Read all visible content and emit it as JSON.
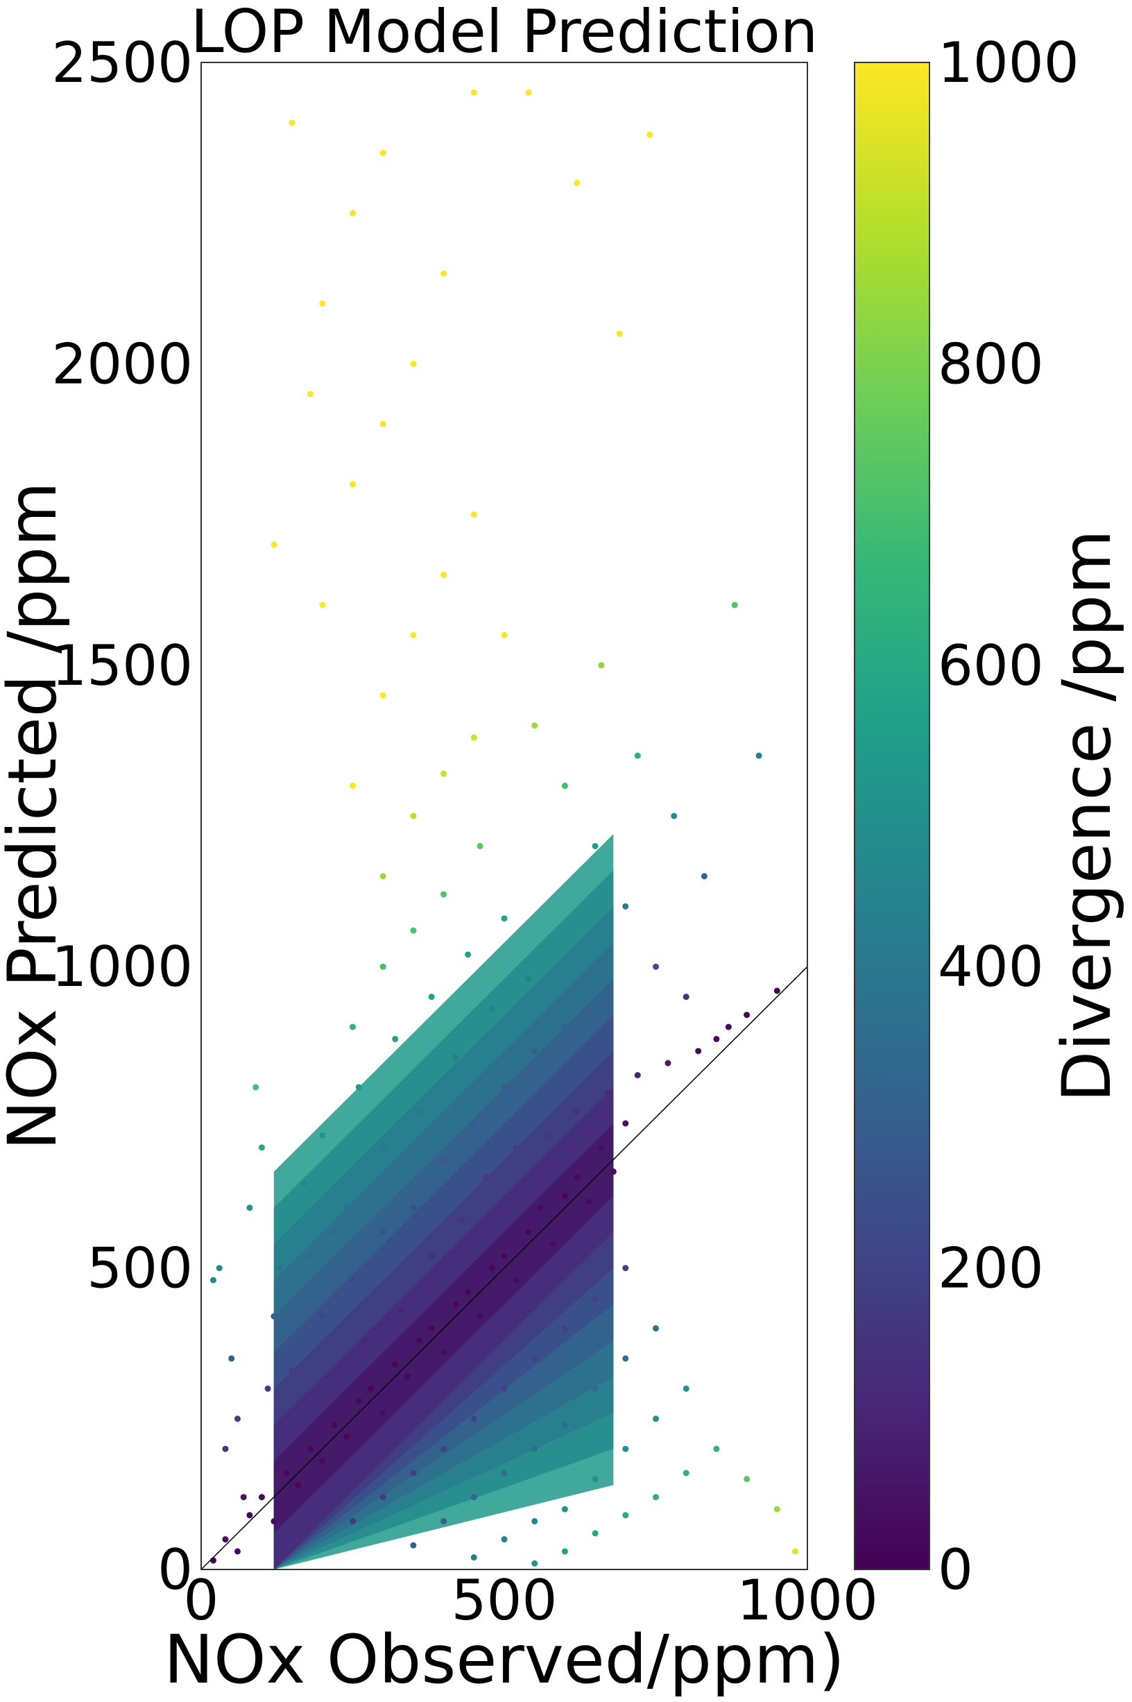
{
  "chart_data": {
    "type": "scatter",
    "title": "LOP Model Prediction",
    "xlabel": "NOx Observed/ppm)",
    "ylabel": "NOx Predicted /ppm",
    "xlim": [
      0,
      1000
    ],
    "ylim": [
      0,
      2500
    ],
    "x_ticks": [
      "0",
      "500",
      "1000"
    ],
    "y_ticks": [
      "0",
      "500",
      "1000",
      "1500",
      "2000",
      "2500"
    ],
    "reference_line": {
      "from": [
        0,
        0
      ],
      "to": [
        1000,
        1000
      ],
      "color": "#000000"
    },
    "grid": false,
    "colorbar": {
      "label": "Divergence /ppm",
      "range": [
        0,
        1000
      ],
      "ticks": [
        "0",
        "200",
        "400",
        "600",
        "800",
        "1000"
      ],
      "colormap": "viridis",
      "color_stops": [
        "#440154",
        "#482878",
        "#3e4989",
        "#31688e",
        "#26828e",
        "#1f9e89",
        "#35b779",
        "#6ece58",
        "#b5de2b",
        "#fde725"
      ]
    },
    "series": [
      {
        "color_by": "divergence = |predicted - observed|",
        "points": [
          [
            20,
            15
          ],
          [
            40,
            50
          ],
          [
            60,
            30
          ],
          [
            80,
            90
          ],
          [
            100,
            120
          ],
          [
            120,
            80
          ],
          [
            140,
            160
          ],
          [
            160,
            140
          ],
          [
            180,
            200
          ],
          [
            200,
            180
          ],
          [
            220,
            240
          ],
          [
            240,
            220
          ],
          [
            260,
            280
          ],
          [
            280,
            300
          ],
          [
            300,
            260
          ],
          [
            320,
            340
          ],
          [
            340,
            320
          ],
          [
            360,
            380
          ],
          [
            380,
            400
          ],
          [
            400,
            360
          ],
          [
            420,
            440
          ],
          [
            440,
            460
          ],
          [
            460,
            420
          ],
          [
            480,
            500
          ],
          [
            500,
            520
          ],
          [
            520,
            480
          ],
          [
            540,
            560
          ],
          [
            560,
            600
          ],
          [
            580,
            540
          ],
          [
            600,
            620
          ],
          [
            620,
            650
          ],
          [
            640,
            610
          ],
          [
            660,
            700
          ],
          [
            680,
            660
          ],
          [
            700,
            740
          ],
          [
            150,
            330
          ],
          [
            200,
            420
          ],
          [
            250,
            480
          ],
          [
            300,
            560
          ],
          [
            350,
            600
          ],
          [
            400,
            680
          ],
          [
            450,
            740
          ],
          [
            500,
            800
          ],
          [
            550,
            860
          ],
          [
            600,
            900
          ],
          [
            120,
            420
          ],
          [
            180,
            520
          ],
          [
            240,
            600
          ],
          [
            300,
            700
          ],
          [
            360,
            760
          ],
          [
            420,
            850
          ],
          [
            480,
            930
          ],
          [
            540,
            980
          ],
          [
            200,
            720
          ],
          [
            260,
            800
          ],
          [
            320,
            880
          ],
          [
            380,
            950
          ],
          [
            440,
            1020
          ],
          [
            500,
            1080
          ],
          [
            250,
            900
          ],
          [
            300,
            1000
          ],
          [
            350,
            1060
          ],
          [
            400,
            1120
          ],
          [
            460,
            1200
          ],
          [
            300,
            1150
          ],
          [
            350,
            1250
          ],
          [
            400,
            1320
          ],
          [
            450,
            1380
          ],
          [
            250,
            1300
          ],
          [
            300,
            1450
          ],
          [
            350,
            1550
          ],
          [
            400,
            1650
          ],
          [
            450,
            1750
          ],
          [
            200,
            1600
          ],
          [
            250,
            1800
          ],
          [
            300,
            1900
          ],
          [
            350,
            2000
          ],
          [
            400,
            2150
          ],
          [
            200,
            2100
          ],
          [
            250,
            2250
          ],
          [
            150,
            2400
          ],
          [
            300,
            2350
          ],
          [
            450,
            2450
          ],
          [
            120,
            1700
          ],
          [
            180,
            1950
          ],
          [
            500,
            1550
          ],
          [
            550,
            1400
          ],
          [
            600,
            1300
          ],
          [
            650,
            1200
          ],
          [
            700,
            1100
          ],
          [
            750,
            1000
          ],
          [
            800,
            950
          ],
          [
            850,
            880
          ],
          [
            900,
            920
          ],
          [
            950,
            960
          ],
          [
            250,
            80
          ],
          [
            300,
            120
          ],
          [
            350,
            160
          ],
          [
            400,
            200
          ],
          [
            450,
            250
          ],
          [
            500,
            300
          ],
          [
            550,
            350
          ],
          [
            600,
            400
          ],
          [
            650,
            450
          ],
          [
            700,
            500
          ],
          [
            350,
            40
          ],
          [
            400,
            80
          ],
          [
            450,
            120
          ],
          [
            500,
            160
          ],
          [
            550,
            200
          ],
          [
            600,
            240
          ],
          [
            650,
            300
          ],
          [
            700,
            350
          ],
          [
            750,
            400
          ],
          [
            450,
            20
          ],
          [
            500,
            50
          ],
          [
            550,
            80
          ],
          [
            600,
            100
          ],
          [
            650,
            150
          ],
          [
            700,
            200
          ],
          [
            750,
            250
          ],
          [
            800,
            300
          ],
          [
            550,
            10
          ],
          [
            600,
            30
          ],
          [
            650,
            60
          ],
          [
            700,
            90
          ],
          [
            750,
            120
          ],
          [
            800,
            160
          ],
          [
            850,
            200
          ],
          [
            900,
            150
          ],
          [
            950,
            100
          ],
          [
            980,
            30
          ],
          [
            50,
            350
          ],
          [
            30,
            500
          ],
          [
            60,
            250
          ],
          [
            80,
            600
          ],
          [
            100,
            700
          ],
          [
            20,
            480
          ],
          [
            40,
            200
          ],
          [
            70,
            120
          ],
          [
            110,
            300
          ],
          [
            130,
            500
          ],
          [
            90,
            800
          ],
          [
            170,
            640
          ],
          [
            220,
            560
          ],
          [
            270,
            380
          ],
          [
            330,
            430
          ],
          [
            380,
            520
          ],
          [
            430,
            580
          ],
          [
            470,
            650
          ],
          [
            520,
            700
          ],
          [
            570,
            720
          ],
          [
            620,
            760
          ],
          [
            670,
            790
          ],
          [
            720,
            820
          ],
          [
            770,
            840
          ],
          [
            820,
            860
          ],
          [
            870,
            900
          ],
          [
            660,
            1500
          ],
          [
            720,
            1350
          ],
          [
            780,
            1250
          ],
          [
            830,
            1150
          ],
          [
            880,
            1600
          ],
          [
            920,
            1350
          ],
          [
            690,
            2050
          ],
          [
            620,
            2300
          ],
          [
            740,
            2380
          ],
          [
            540,
            2450
          ]
        ]
      }
    ]
  }
}
